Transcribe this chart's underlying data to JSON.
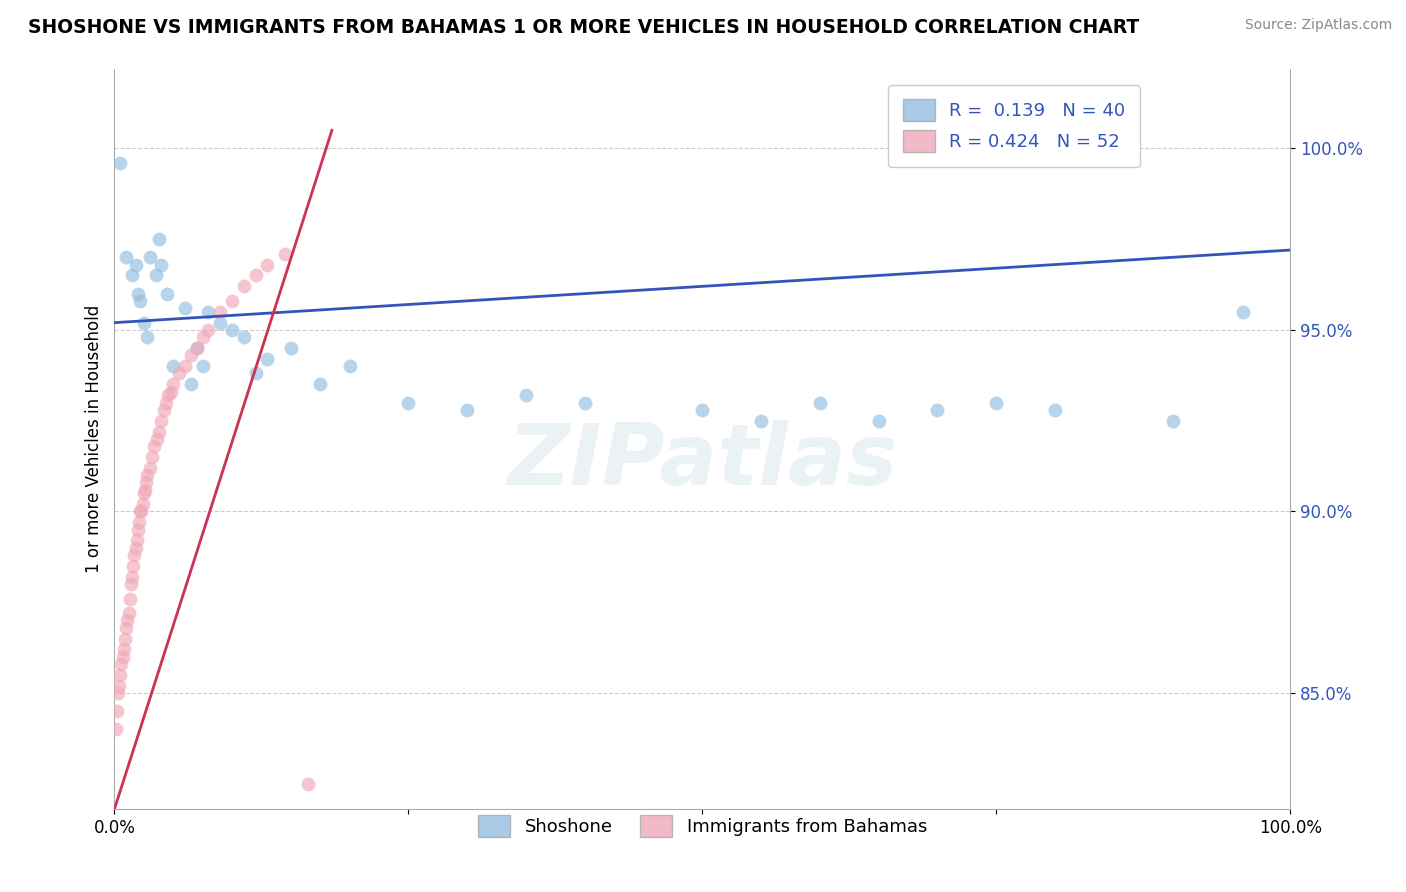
{
  "title": "SHOSHONE VS IMMIGRANTS FROM BAHAMAS 1 OR MORE VEHICLES IN HOUSEHOLD CORRELATION CHART",
  "source": "Source: ZipAtlas.com",
  "ylabel": "1 or more Vehicles in Household",
  "watermark": "ZIPatlas",
  "xlim": [
    0.0,
    1.0
  ],
  "ylim": [
    0.818,
    1.022
  ],
  "yticks": [
    0.85,
    0.9,
    0.95,
    1.0
  ],
  "ytick_labels": [
    "85.0%",
    "90.0%",
    "95.0%",
    "100.0%"
  ],
  "legend_R1": "R =  0.139",
  "legend_N1": "N = 40",
  "legend_R2": "R = 0.424",
  "legend_N2": "N = 52",
  "blue_color": "#92bde0",
  "pink_color": "#f0a8b8",
  "line_blue": "#3355bb",
  "line_pink": "#cc3355",
  "shoshone_x": [
    0.005,
    0.01,
    0.015,
    0.018,
    0.02,
    0.022,
    0.025,
    0.028,
    0.03,
    0.035,
    0.038,
    0.04,
    0.045,
    0.05,
    0.06,
    0.065,
    0.07,
    0.075,
    0.08,
    0.09,
    0.1,
    0.11,
    0.12,
    0.13,
    0.15,
    0.175,
    0.2,
    0.25,
    0.3,
    0.35,
    0.4,
    0.5,
    0.55,
    0.6,
    0.65,
    0.7,
    0.75,
    0.8,
    0.9,
    0.96
  ],
  "shoshone_y": [
    0.996,
    0.97,
    0.965,
    0.968,
    0.96,
    0.958,
    0.952,
    0.948,
    0.97,
    0.965,
    0.975,
    0.968,
    0.96,
    0.94,
    0.956,
    0.935,
    0.945,
    0.94,
    0.955,
    0.952,
    0.95,
    0.948,
    0.938,
    0.942,
    0.945,
    0.935,
    0.94,
    0.93,
    0.928,
    0.932,
    0.93,
    0.928,
    0.925,
    0.93,
    0.925,
    0.928,
    0.93,
    0.928,
    0.925,
    0.955
  ],
  "bahamas_x": [
    0.001,
    0.002,
    0.003,
    0.004,
    0.005,
    0.006,
    0.007,
    0.008,
    0.009,
    0.01,
    0.011,
    0.012,
    0.013,
    0.014,
    0.015,
    0.016,
    0.017,
    0.018,
    0.019,
    0.02,
    0.021,
    0.022,
    0.023,
    0.024,
    0.025,
    0.026,
    0.027,
    0.028,
    0.03,
    0.032,
    0.034,
    0.036,
    0.038,
    0.04,
    0.042,
    0.044,
    0.046,
    0.048,
    0.05,
    0.055,
    0.06,
    0.065,
    0.07,
    0.075,
    0.08,
    0.09,
    0.1,
    0.11,
    0.12,
    0.13,
    0.145,
    0.165
  ],
  "bahamas_y": [
    0.84,
    0.845,
    0.85,
    0.852,
    0.855,
    0.858,
    0.86,
    0.862,
    0.865,
    0.868,
    0.87,
    0.872,
    0.876,
    0.88,
    0.882,
    0.885,
    0.888,
    0.89,
    0.892,
    0.895,
    0.897,
    0.9,
    0.9,
    0.902,
    0.905,
    0.906,
    0.908,
    0.91,
    0.912,
    0.915,
    0.918,
    0.92,
    0.922,
    0.925,
    0.928,
    0.93,
    0.932,
    0.933,
    0.935,
    0.938,
    0.94,
    0.943,
    0.945,
    0.948,
    0.95,
    0.955,
    0.958,
    0.962,
    0.965,
    0.968,
    0.971,
    0.825
  ],
  "marker_size": 100,
  "blue_line_y0": 0.952,
  "blue_line_y1": 0.972,
  "pink_line_x0": 0.0,
  "pink_line_y0": 0.818,
  "pink_line_x1": 0.185,
  "pink_line_y1": 1.005
}
